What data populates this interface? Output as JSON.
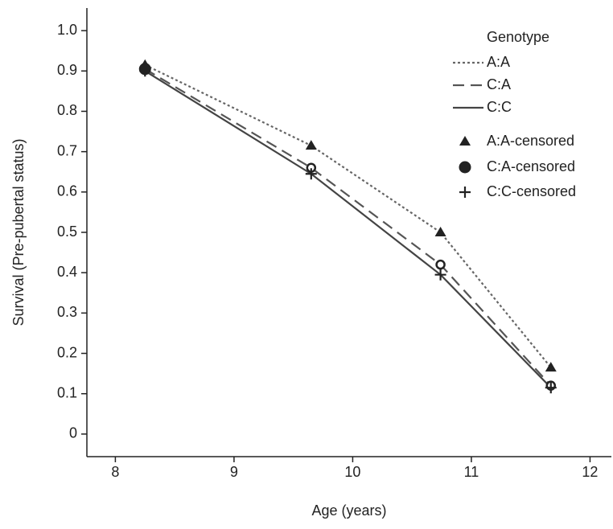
{
  "chart_data": {
    "type": "line",
    "x_label": "Age (years)",
    "y_label": "Survival (Pre-pubertal status)",
    "x": [
      8.25,
      9.65,
      10.74,
      11.67
    ],
    "xlim": [
      7.76,
      12.18
    ],
    "xticks": [
      8,
      9,
      10,
      11,
      12
    ],
    "ylim": [
      -0.056,
      1.056
    ],
    "yticks": [
      0,
      0.1,
      0.2,
      0.3,
      0.4,
      0.5,
      0.6,
      0.7,
      0.8,
      0.9,
      {
        "value": 1,
        "label": "1.0"
      }
    ],
    "grid": false,
    "legend_title": "Genotype",
    "legend_position": "upper right",
    "series": [
      {
        "name": "A:A",
        "color": "#666666",
        "dash": "dotted",
        "values": [
          0.915,
          0.715,
          0.5,
          0.165
        ]
      },
      {
        "name": "C:A",
        "color": "#555555",
        "dash": "dashed",
        "values": [
          0.905,
          0.66,
          0.42,
          0.12
        ]
      },
      {
        "name": "C:C",
        "color": "#444444",
        "dash": "solid",
        "values": [
          0.9,
          0.645,
          0.395,
          0.115
        ]
      },
      {
        "name": "A:A-censored",
        "color": "#222222",
        "marker": "triangle",
        "values": [
          0.915,
          0.715,
          0.5,
          0.165
        ]
      },
      {
        "name": "C:A-censored",
        "color": "#222222",
        "marker": "circle",
        "values": [
          0.905,
          0.66,
          0.42,
          0.12
        ]
      },
      {
        "name": "C:C-censored",
        "color": "#222222",
        "marker": "plus",
        "values": [
          0.9,
          0.645,
          0.395,
          0.115
        ]
      }
    ]
  }
}
